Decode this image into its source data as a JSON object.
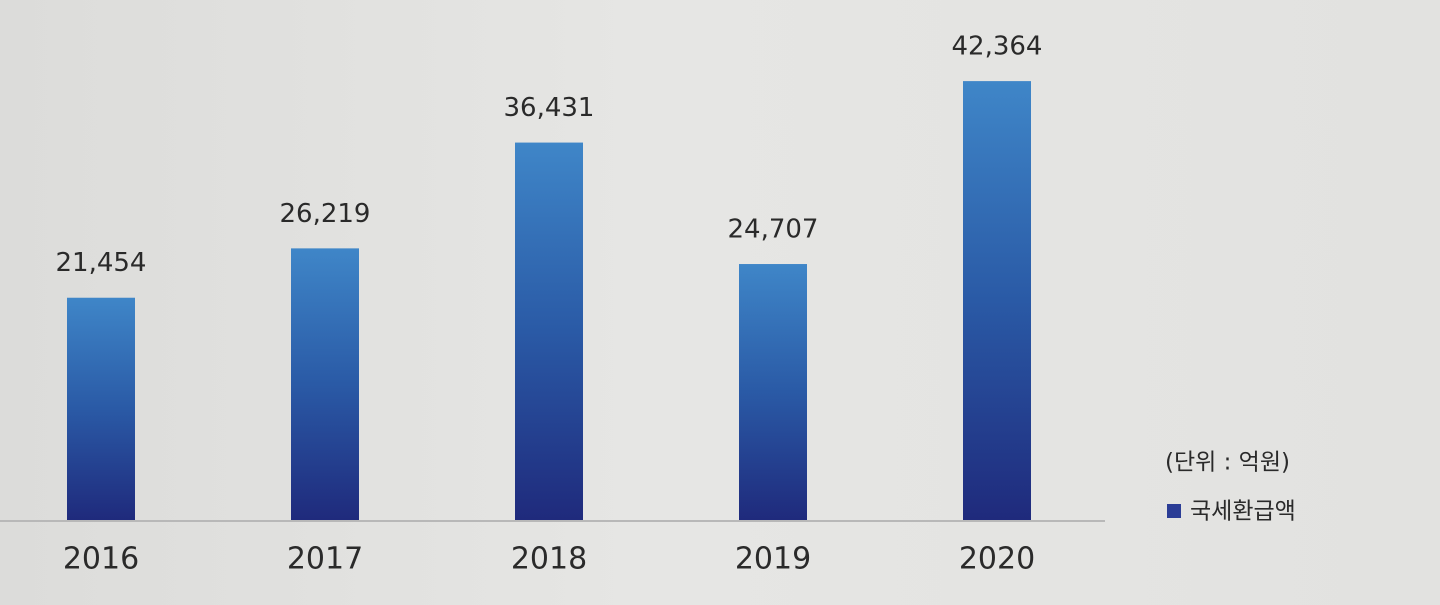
{
  "chart_data": {
    "type": "bar",
    "categories": [
      "2016",
      "2017",
      "2018",
      "2019",
      "2020"
    ],
    "series": [
      {
        "name": "국세환급액",
        "color": "#2b3d96",
        "values": [
          21454,
          26219,
          36431,
          24707,
          42364
        ],
        "value_labels": [
          "21,454",
          "26,219",
          "36,431",
          "24,707",
          "42,364"
        ]
      }
    ],
    "unit_note": "(단위 : 억원)",
    "ylim": [
      0,
      50000
    ]
  }
}
